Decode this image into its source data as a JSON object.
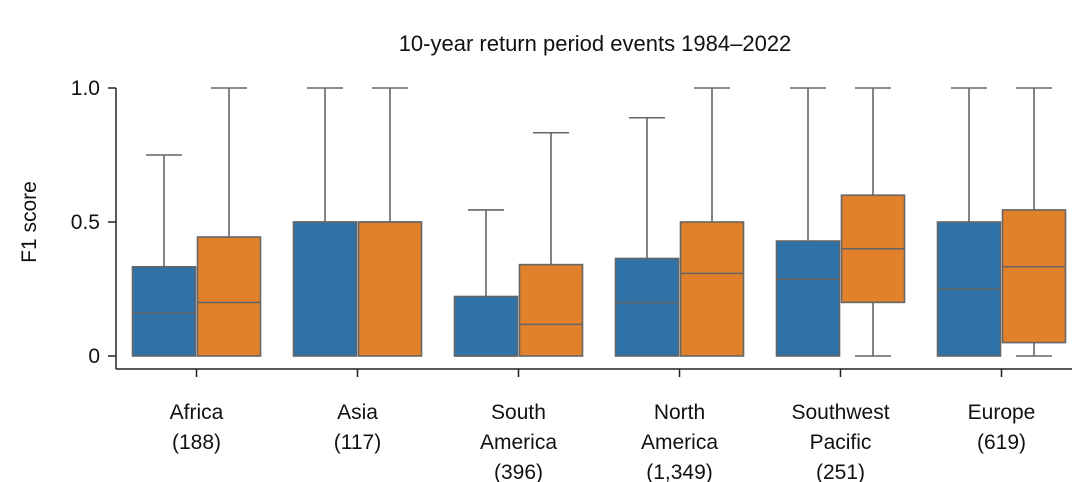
{
  "chart_data": {
    "type": "box",
    "title": "10-year return period events 1984–2022",
    "xlabel": "",
    "ylabel": "F1 score",
    "ylim": [
      0,
      1
    ],
    "yticks": [
      {
        "value": 0,
        "label": "0"
      },
      {
        "value": 0.5,
        "label": "0.5"
      },
      {
        "value": 1.0,
        "label": "1.0"
      }
    ],
    "grid": false,
    "categories": [
      {
        "lines": [
          "Africa",
          "(188)"
        ]
      },
      {
        "lines": [
          "Asia",
          "(117)"
        ]
      },
      {
        "lines": [
          "South",
          "America",
          "(396)"
        ]
      },
      {
        "lines": [
          "North",
          "America",
          "(1,349)"
        ]
      },
      {
        "lines": [
          "Southwest",
          "Pacific",
          "(251)"
        ]
      },
      {
        "lines": [
          "Europe",
          "(619)"
        ]
      }
    ],
    "series": [
      {
        "color": "#2e72a8",
        "boxes": [
          {
            "min": 0,
            "q1": 0,
            "median": 0.16,
            "q3": 0.333,
            "max": 0.75
          },
          {
            "min": 0,
            "q1": 0,
            "median": 0.5,
            "q3": 0.5,
            "max": 1.0
          },
          {
            "min": 0,
            "q1": 0,
            "median": 0,
            "q3": 0.222,
            "max": 0.545
          },
          {
            "min": 0,
            "q1": 0,
            "median": 0.2,
            "q3": 0.364,
            "max": 0.889
          },
          {
            "min": 0,
            "q1": 0,
            "median": 0.286,
            "q3": 0.429,
            "max": 1.0
          },
          {
            "min": 0,
            "q1": 0,
            "median": 0.25,
            "q3": 0.5,
            "max": 1.0
          }
        ]
      },
      {
        "color": "#e1812c",
        "boxes": [
          {
            "min": 0,
            "q1": 0,
            "median": 0.2,
            "q3": 0.444,
            "max": 1.0
          },
          {
            "min": 0,
            "q1": 0,
            "median": 0.5,
            "q3": 0.5,
            "max": 1.0
          },
          {
            "min": 0,
            "q1": 0,
            "median": 0.118,
            "q3": 0.341,
            "max": 0.833
          },
          {
            "min": 0,
            "q1": 0,
            "median": 0.308,
            "q3": 0.5,
            "max": 1.0
          },
          {
            "min": 0,
            "q1": 0.2,
            "median": 0.4,
            "q3": 0.6,
            "max": 1.0
          },
          {
            "min": 0,
            "q1": 0.05,
            "median": 0.333,
            "q3": 0.545,
            "max": 1.0
          }
        ]
      }
    ]
  }
}
